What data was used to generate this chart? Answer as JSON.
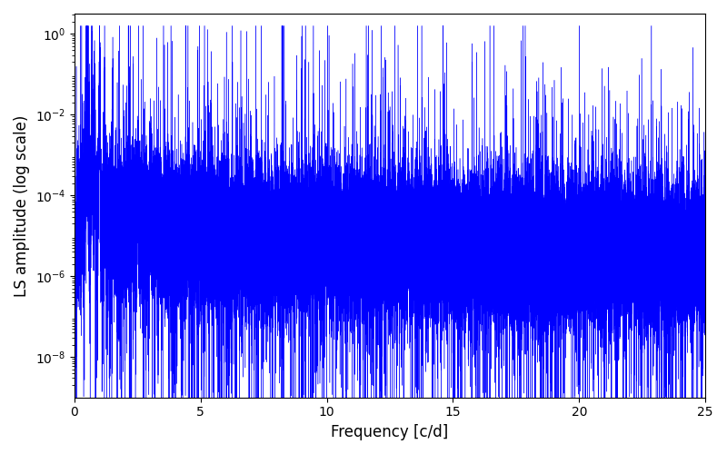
{
  "xlabel": "Frequency [c/d]",
  "ylabel": "LS amplitude (log scale)",
  "xlim": [
    0,
    25
  ],
  "line_color": "#0000FF",
  "line_width": 0.3,
  "background_color": "#ffffff",
  "n_points": 50000,
  "seed": 7,
  "freq_max": 25.0,
  "yticks": [
    1e-08,
    1e-06,
    0.0001,
    0.01,
    1.0
  ],
  "ylim_bottom": 3e-10,
  "ylim_top": 3.0
}
